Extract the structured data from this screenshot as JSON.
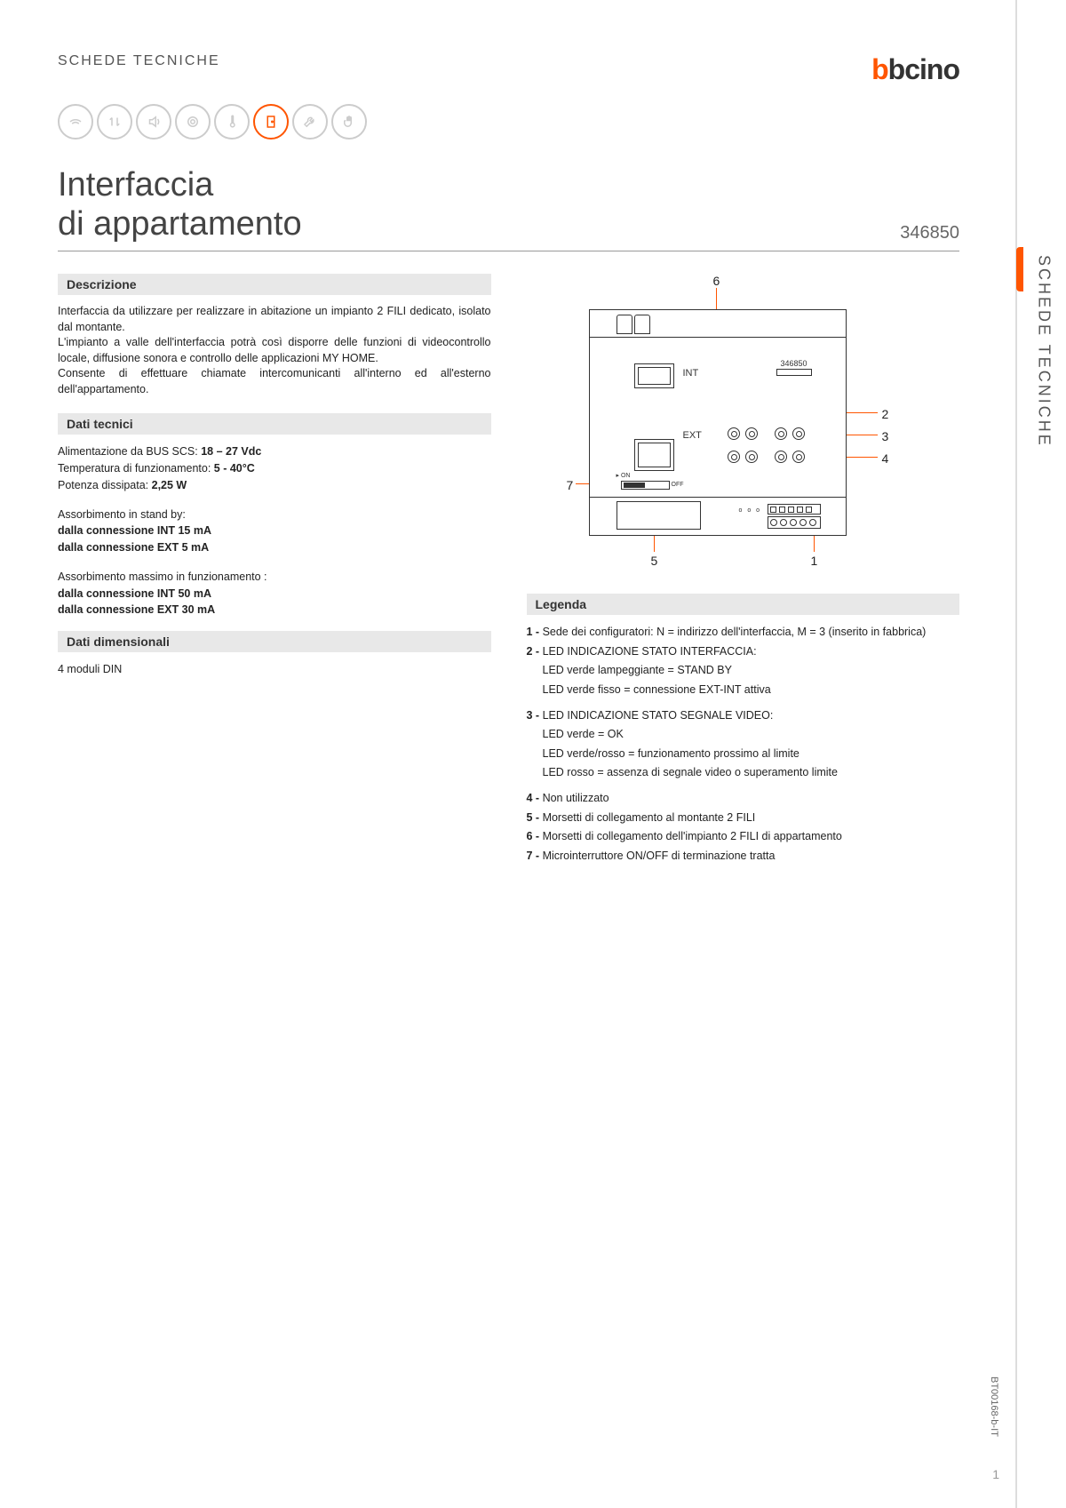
{
  "header": {
    "breadcrumb": "SCHEDE TECNICHE",
    "logo_prefix": "b",
    "logo_text": "bcino"
  },
  "title": {
    "line1": "Interfaccia",
    "line2": "di appartamento",
    "product_code": "346850"
  },
  "sections": {
    "descrizione": {
      "header": "Descrizione",
      "p1": "Interfaccia da utilizzare per realizzare in abitazione un impianto 2 FILI dedicato, isolato dal montante.",
      "p2": "L'impianto a valle dell'interfaccia potrà così disporre delle funzioni di videocontrollo locale, diffusione sonora e controllo delle applicazioni MY HOME.",
      "p3": "Consente di effettuare chiamate intercomunicanti all'interno ed all'esterno dell'appartamento."
    },
    "dati_tecnici": {
      "header": "Dati tecnici",
      "alim_label": "Alimentazione da BUS SCS: ",
      "alim_value": "18 – 27 Vdc",
      "temp_label": "Temperatura di funzionamento: ",
      "temp_value": "5 - 40°C",
      "pot_label": "Potenza dissipata: ",
      "pot_value": "2,25 W",
      "standby_label": "Assorbimento in stand by:",
      "standby_int": "dalla connessione INT 15 mA",
      "standby_ext": "dalla connessione EXT 5 mA",
      "max_label": "Assorbimento massimo in funzionamento :",
      "max_int": "dalla connessione INT 50 mA",
      "max_ext": "dalla connessione EXT 30 mA"
    },
    "dati_dimensionali": {
      "header": "Dati dimensionali",
      "value": "4 moduli DIN"
    },
    "legenda": {
      "header": "Legenda",
      "items": [
        {
          "n": "1",
          "text": "Sede dei configuratori: N = indirizzo dell'interfaccia, M = 3 (inserito in fabbrica)"
        },
        {
          "n": "2",
          "text": "LED INDICAZIONE STATO INTERFACCIA:"
        },
        {
          "n": "",
          "text": "LED verde lampeggiante = STAND BY",
          "sub": true
        },
        {
          "n": "",
          "text": "LED verde fisso = connessione EXT-INT attiva",
          "sub": true,
          "gap": true
        },
        {
          "n": "3",
          "text": "LED INDICAZIONE STATO SEGNALE VIDEO:"
        },
        {
          "n": "",
          "text": "LED verde = OK",
          "sub": true
        },
        {
          "n": "",
          "text": "LED verde/rosso = funzionamento prossimo al limite",
          "sub": true
        },
        {
          "n": "",
          "text": "LED rosso = assenza di segnale video o superamento limite",
          "sub": true,
          "gap": true
        },
        {
          "n": "4",
          "text": "Non utilizzato"
        },
        {
          "n": "5",
          "text": "Morsetti di collegamento al montante 2 FILI"
        },
        {
          "n": "6",
          "text": "Morsetti di collegamento dell'impianto 2 FILI di appartamento"
        },
        {
          "n": "7",
          "text": "Microinterruttore ON/OFF di terminazione tratta"
        }
      ]
    }
  },
  "diagram": {
    "int_label": "INT",
    "ext_label": "EXT",
    "model": "346850",
    "on_label": "ON",
    "off_label": "OFF",
    "callouts": [
      "1",
      "2",
      "3",
      "4",
      "5",
      "6",
      "7"
    ]
  },
  "side_tab": "SCHEDE TECNICHE",
  "footer": {
    "doc_code": "BT00168-b-IT",
    "page": "1"
  },
  "colors": {
    "accent": "#ff5500",
    "text": "#333333",
    "muted": "#cccccc",
    "section_bg": "#e8e8e8"
  }
}
